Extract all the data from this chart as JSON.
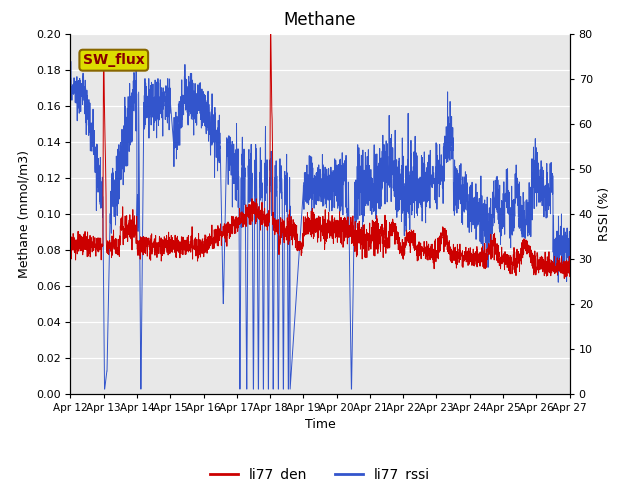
{
  "title": "Methane",
  "ylabel_left": "Methane (mmol/m3)",
  "ylabel_right": "RSSI (%)",
  "xlabel": "Time",
  "ylim_left": [
    0.0,
    0.2
  ],
  "ylim_right": [
    0,
    80
  ],
  "yticks_left": [
    0.0,
    0.02,
    0.04,
    0.06,
    0.08,
    0.1,
    0.12,
    0.14,
    0.16,
    0.18,
    0.2
  ],
  "yticks_right": [
    0,
    10,
    20,
    30,
    40,
    50,
    60,
    70,
    80
  ],
  "color_red": "#cc0000",
  "color_blue": "#3355cc",
  "label_red": "li77_den",
  "label_blue": "li77_rssi",
  "annotation_text": "SW_flux",
  "annotation_bg": "#dddd00",
  "annotation_border": "#886600",
  "figsize": [
    6.4,
    4.8
  ],
  "dpi": 100,
  "plot_bg": "#e8e8e8",
  "fig_bg": "#ffffff"
}
